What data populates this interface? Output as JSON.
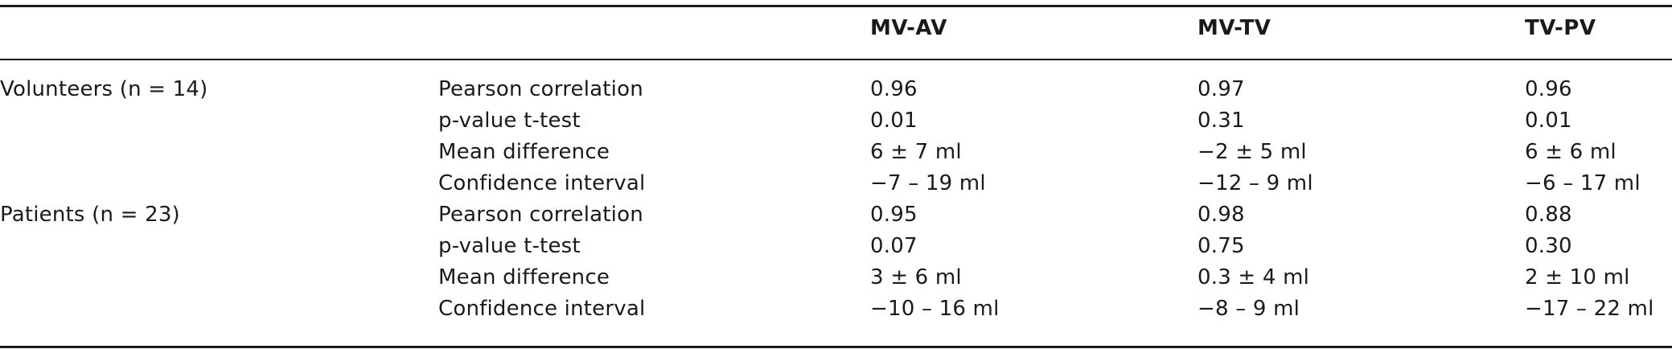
{
  "table": {
    "headers": [
      "",
      "",
      "MV-AV",
      "MV-TV",
      "TV-PV"
    ],
    "groups": [
      {
        "label": "Volunteers (n = 14)",
        "rows": [
          {
            "metric": "Pearson correlation",
            "values": [
              "0.96",
              "0.97",
              "0.96"
            ]
          },
          {
            "metric": "p-value t-test",
            "values": [
              "0.01",
              "0.31",
              "0.01"
            ]
          },
          {
            "metric": "Mean difference",
            "values": [
              "6 ± 7 ml",
              "−2 ± 5 ml",
              "6 ± 6 ml"
            ]
          },
          {
            "metric": "Confidence interval",
            "values": [
              "−7 – 19 ml",
              "−12 – 9 ml",
              "−6 – 17 ml"
            ]
          }
        ]
      },
      {
        "label": "Patients (n = 23)",
        "rows": [
          {
            "metric": "Pearson correlation",
            "values": [
              "0.95",
              "0.98",
              "0.88"
            ]
          },
          {
            "metric": "p-value t-test",
            "values": [
              "0.07",
              "0.75",
              "0.30"
            ]
          },
          {
            "metric": "Mean difference",
            "values": [
              "3 ± 6 ml",
              "0.3 ± 4 ml",
              "2 ± 10 ml"
            ]
          },
          {
            "metric": "Confidence interval",
            "values": [
              "−10 – 16 ml",
              "−8 – 9 ml",
              "−17 – 22 ml"
            ]
          }
        ]
      }
    ]
  }
}
